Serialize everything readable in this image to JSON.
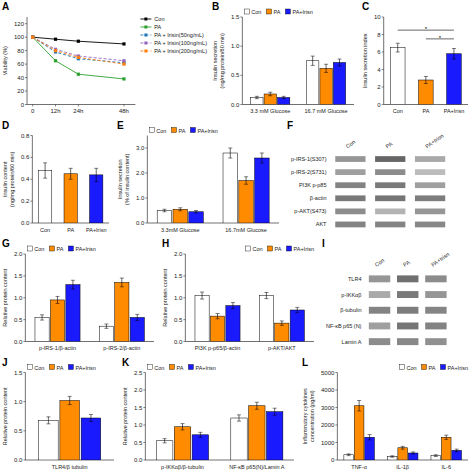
{
  "chart_data": [
    {
      "type": "line",
      "title": "A",
      "x": [
        0,
        12,
        24,
        48
      ],
      "xlim": [
        -3,
        54
      ],
      "xticks": [
        0,
        {
          "value": 12,
          "label": "12h"
        },
        {
          "value": 24,
          "label": "24h"
        },
        {
          "value": 48,
          "label": "48h"
        }
      ],
      "ylabel": "Viability (%)",
      "ylim": [
        0,
        130
      ],
      "yticks": [
        0,
        20,
        40,
        60,
        80,
        100,
        120
      ],
      "legend": "upper right",
      "series": [
        {
          "name": "Con",
          "color": "#000000",
          "marker": "square",
          "line_style": "solid",
          "values": [
            100,
            97,
            94,
            90
          ]
        },
        {
          "name": "PA",
          "color": "#2ca02c",
          "marker": "square",
          "line_style": "solid",
          "values": [
            100,
            65,
            45,
            38
          ]
        },
        {
          "name": "PA + Irisin(50ng/mL)",
          "color": "#1f77b4",
          "marker": "square",
          "line_style": "dashed",
          "values": [
            100,
            78,
            68,
            62
          ]
        },
        {
          "name": "PA + Irisin(100ng/mL)",
          "color": "#9467bd",
          "marker": "square",
          "line_style": "dashed",
          "values": [
            100,
            82,
            72,
            65
          ]
        },
        {
          "name": "PA + Irisin(200ng/mL)",
          "color": "#ff7f0e",
          "marker": "square",
          "line_style": "dashed",
          "values": [
            100,
            80,
            70,
            60
          ]
        }
      ]
    },
    {
      "type": "bar",
      "title": "B",
      "categories": [
        "3.3 mM Glucose",
        "16.7 mM Glucose"
      ],
      "ylabel": "Insulin secretion\n(ng/mg protein/60 min)",
      "ylim": [
        0,
        1.5
      ],
      "yticks": [
        {
          "value": 0,
          "label": "0.0"
        },
        0.5,
        {
          "value": 1,
          "label": "1.0"
        },
        1.5
      ],
      "legend": "upper left",
      "series": [
        {
          "name": "Con",
          "color": "#ffffff",
          "values": [
            0.12,
            0.75
          ],
          "errors": [
            0.02,
            0.08
          ]
        },
        {
          "name": "PA",
          "color": "#ff8c00",
          "values": [
            0.18,
            0.62
          ],
          "errors": [
            0.03,
            0.07
          ]
        },
        {
          "name": "PA+Irisn",
          "color": "#1a1aff",
          "values": [
            0.12,
            0.72
          ],
          "errors": [
            0.02,
            0.06
          ]
        }
      ]
    },
    {
      "type": "bar",
      "title": "C",
      "categories": [
        "Con",
        "PA",
        "PA+Irisn"
      ],
      "colors": [
        "#ffffff",
        "#ff8c00",
        "#1a1aff"
      ],
      "values": [
        6.5,
        2.8,
        5.8
      ],
      "errors": [
        0.5,
        0.4,
        0.6
      ],
      "ylabel": "Insulin secretion index",
      "ylim": [
        0,
        10
      ],
      "yticks": [
        0,
        2,
        4,
        6,
        8,
        10
      ],
      "annotations": [
        {
          "text": "*",
          "from": "Con",
          "to": "PA+Irisn",
          "y": 8.5
        },
        {
          "text": "*",
          "from": "PA",
          "to": "PA+Irisn",
          "y": 7.5
        }
      ]
    },
    {
      "type": "bar",
      "title": "D",
      "categories": [
        "Con",
        "PA",
        "PA+Irisn"
      ],
      "colors": [
        "#ffffff",
        "#ff8c00",
        "#1a1aff"
      ],
      "values": [
        0.48,
        0.45,
        0.44
      ],
      "errors": [
        0.07,
        0.05,
        0.06
      ],
      "ylabel": "Insulin content\n(ng/mg protein/60 min)",
      "ylim": [
        0,
        0.8
      ],
      "yticks": [
        {
          "value": 0,
          "label": "0.0"
        },
        0.2,
        0.4,
        0.6,
        0.8
      ]
    },
    {
      "type": "bar",
      "title": "E",
      "categories": [
        "3.3mM Glucose",
        "16.7mM Glucose"
      ],
      "ylabel": "Insulin secretion\n(% of insulin content)",
      "ylim": [
        0,
        3.5
      ],
      "yticks": [
        {
          "value": 0,
          "label": "0.0"
        },
        {
          "value": 1,
          "label": "1.0"
        },
        {
          "value": 2,
          "label": "2.0"
        },
        {
          "value": 3,
          "label": "3.0"
        }
      ],
      "legend": "upper left",
      "series": [
        {
          "name": "Con",
          "color": "#ffffff",
          "values": [
            0.5,
            2.8
          ],
          "errors": [
            0.05,
            0.2
          ]
        },
        {
          "name": "PA",
          "color": "#ff8c00",
          "values": [
            0.55,
            1.7
          ],
          "errors": [
            0.06,
            0.15
          ]
        },
        {
          "name": "PA+Irisn",
          "color": "#1a1aff",
          "values": [
            0.45,
            2.6
          ],
          "errors": [
            0.05,
            0.2
          ]
        }
      ]
    },
    {
      "type": "blot",
      "title": "F",
      "categories": [
        "Con",
        "PA",
        "PA+Irisn"
      ],
      "rows": [
        "p-IRS-1(S307)",
        "p-IRS-2(S731)",
        "PI3K p-p85",
        "β-actin",
        "p-AKT(S473)",
        "AKT"
      ],
      "cells": [
        [
          0.55,
          0.8,
          0.45
        ],
        [
          0.5,
          0.6,
          0.35
        ],
        [
          0.65,
          0.7,
          0.5
        ],
        [
          0.7,
          0.72,
          0.68
        ],
        [
          0.6,
          0.4,
          0.55
        ],
        [
          0.65,
          0.65,
          0.63
        ]
      ]
    },
    {
      "type": "bar",
      "title": "G",
      "categories": [
        "p-IRS-1/β-actin",
        "p-IRS-2/β-actin"
      ],
      "ylabel": "Relative protein content",
      "ylim": [
        0,
        2.0
      ],
      "yticks": [
        {
          "value": 0,
          "label": "0.0"
        },
        0.5,
        {
          "value": 1,
          "label": "1.0"
        },
        1.5,
        {
          "value": 2,
          "label": "2.0"
        }
      ],
      "legend": "upper left",
      "series": [
        {
          "name": "Con",
          "color": "#ffffff",
          "values": [
            0.55,
            0.35
          ],
          "errors": [
            0.06,
            0.05
          ]
        },
        {
          "name": "PA",
          "color": "#ff8c00",
          "values": [
            0.95,
            1.35
          ],
          "errors": [
            0.08,
            0.1
          ]
        },
        {
          "name": "PA+Irisn",
          "color": "#1a1aff",
          "values": [
            1.3,
            0.55
          ],
          "errors": [
            0.1,
            0.07
          ]
        }
      ]
    },
    {
      "type": "bar",
      "title": "H",
      "categories": [
        "PI3K p-p65/β-actin",
        "p-AKT/AKT"
      ],
      "ylabel": "Relative protein content",
      "ylim": [
        0,
        2.0
      ],
      "yticks": [
        {
          "value": 0,
          "label": "0.0"
        },
        0.5,
        {
          "value": 1,
          "label": "1.0"
        },
        1.5,
        {
          "value": 2,
          "label": "2.0"
        }
      ],
      "legend": "upper right",
      "series": [
        {
          "name": "Con",
          "color": "#ffffff",
          "values": [
            1.05,
            1.05
          ],
          "errors": [
            0.08,
            0.07
          ]
        },
        {
          "name": "PA",
          "color": "#ff8c00",
          "values": [
            0.58,
            0.42
          ],
          "errors": [
            0.06,
            0.05
          ]
        },
        {
          "name": "PA+Irisn",
          "color": "#1a1aff",
          "values": [
            0.82,
            0.72
          ],
          "errors": [
            0.07,
            0.06
          ]
        }
      ]
    },
    {
      "type": "blot",
      "title": "I",
      "categories": [
        "Con",
        "PA",
        "PA+Irisn"
      ],
      "rows": [
        "TLR4",
        "p-IKKαβ",
        "β-tubulin",
        "NF-κB p65 (N)",
        "Lamin A"
      ],
      "cells": [
        [
          0.55,
          0.75,
          0.6
        ],
        [
          0.45,
          0.7,
          0.55
        ],
        [
          0.65,
          0.68,
          0.64
        ],
        [
          0.5,
          0.72,
          0.65
        ],
        [
          0.6,
          0.62,
          0.58
        ]
      ]
    },
    {
      "type": "bar",
      "title": "J",
      "categories": [
        "TLR4/β tubulin"
      ],
      "ylabel": "Relative protein content",
      "ylim": [
        0,
        1.5
      ],
      "yticks": [
        {
          "value": 0,
          "label": "0.0"
        },
        0.5,
        {
          "value": 1,
          "label": "1.0"
        },
        1.5
      ],
      "legend": "upper left",
      "series": [
        {
          "name": "Con",
          "color": "#ffffff",
          "values": [
            0.68
          ],
          "errors": [
            0.06
          ]
        },
        {
          "name": "PA",
          "color": "#ff8c00",
          "values": [
            1.02
          ],
          "errors": [
            0.07
          ]
        },
        {
          "name": "PA+Irisn",
          "color": "#1a1aff",
          "values": [
            0.72
          ],
          "errors": [
            0.06
          ]
        }
      ]
    },
    {
      "type": "bar",
      "title": "K",
      "categories": [
        "p-IKKαβ/β-tubulin",
        "NF-κB p65(N)/Lamin A"
      ],
      "ylabel": "Relative protein content",
      "ylim": [
        0,
        2.5
      ],
      "yticks": [
        {
          "value": 0,
          "label": "0.0"
        },
        0.5,
        {
          "value": 1,
          "label": "1.0"
        },
        1.5,
        {
          "value": 2,
          "label": "2.0"
        },
        2.5
      ],
      "legend": "upper left",
      "series": [
        {
          "name": "Con",
          "color": "#ffffff",
          "values": [
            0.55,
            1.2
          ],
          "errors": [
            0.06,
            0.09
          ]
        },
        {
          "name": "PA",
          "color": "#ff8c00",
          "values": [
            0.95,
            1.55
          ],
          "errors": [
            0.09,
            0.1
          ]
        },
        {
          "name": "PA+Irisn",
          "color": "#1a1aff",
          "values": [
            0.72,
            1.38
          ],
          "errors": [
            0.07,
            0.1
          ]
        }
      ]
    },
    {
      "type": "bar",
      "title": "L",
      "categories": [
        "TNF-α",
        "IL-1β",
        "IL-6"
      ],
      "ylabel": "Inflammatory cytokines\nconcentration (pg/ml)",
      "ylim": [
        0,
        5000
      ],
      "yticks": [
        0,
        1000,
        2000,
        3000,
        4000,
        5000
      ],
      "legend": "upper right",
      "series": [
        {
          "name": "Con",
          "color": "#ffffff",
          "values": [
            300,
            200,
            250
          ],
          "errors": [
            50,
            40,
            50
          ]
        },
        {
          "name": "PA",
          "color": "#ff8c00",
          "values": [
            3100,
            700,
            1300
          ],
          "errors": [
            300,
            80,
            120
          ]
        },
        {
          "name": "PA+Irisn",
          "color": "#1a1aff",
          "values": [
            1300,
            400,
            550
          ],
          "errors": [
            150,
            60,
            70
          ]
        }
      ]
    }
  ]
}
